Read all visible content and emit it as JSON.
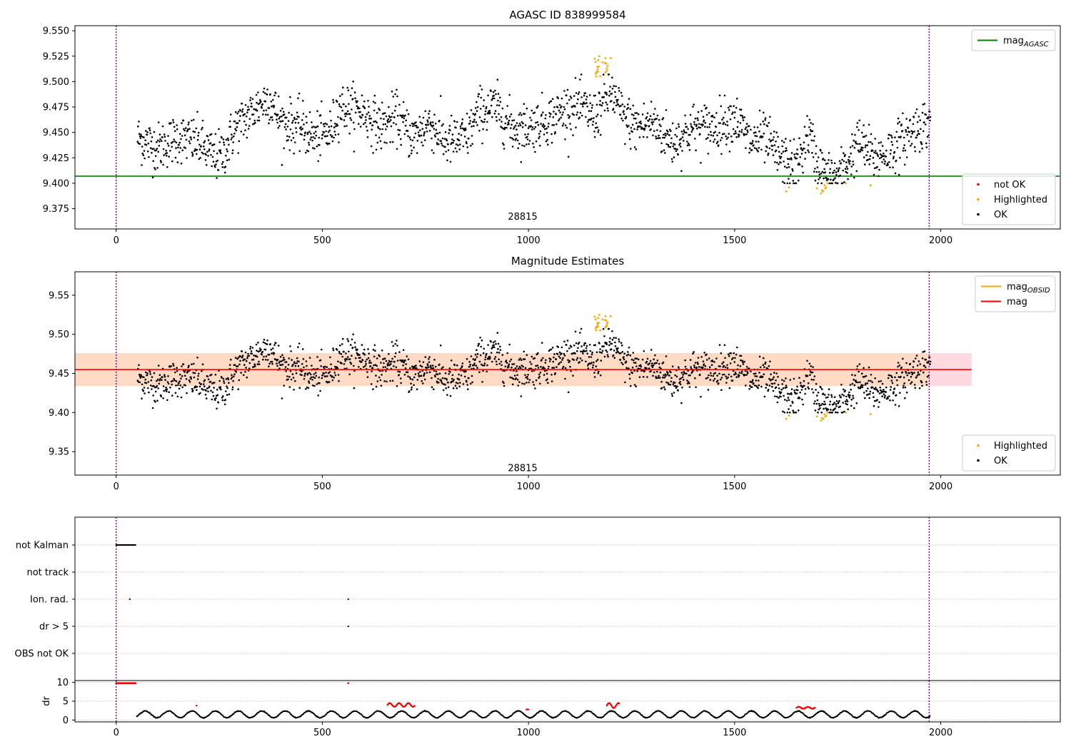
{
  "chart_data": [
    {
      "type": "scatter",
      "title": "AGASC ID 838999584",
      "xlabel": "",
      "ylabel": "",
      "xlim": [
        -100,
        2290
      ],
      "ylim": [
        9.355,
        9.555
      ],
      "x_ticks": [
        0,
        500,
        1000,
        1500,
        2000
      ],
      "x_tick_labels": [
        "0",
        "500",
        "1000",
        "1500",
        "2000"
      ],
      "y_ticks": [
        9.375,
        9.4,
        9.425,
        9.45,
        9.475,
        9.5,
        9.525,
        9.55
      ],
      "y_tick_labels": [
        "9.375",
        "9.400",
        "9.425",
        "9.450",
        "9.475",
        "9.500",
        "9.525",
        "9.550"
      ],
      "vlines": [
        0,
        1972
      ],
      "hline": {
        "name": "mag_AGASC",
        "value": 9.407,
        "color": "#008000",
        "x_range": [
          -100,
          2290
        ]
      },
      "obsid_label": {
        "text": "28815",
        "x": 986,
        "y": 9.364
      },
      "legend_top": [
        {
          "label": "mag",
          "sub": "AGASC",
          "color": "#008000",
          "kind": "line"
        }
      ],
      "legend_bottom": [
        {
          "label": "not OK",
          "color": "#ff0000",
          "kind": "dot"
        },
        {
          "label": "Highlighted",
          "color": "#ffa500",
          "kind": "dot"
        },
        {
          "label": "OK",
          "color": "#000000",
          "kind": "dot"
        }
      ],
      "series_desc": "OK samples ~1970 points, x 50-1975, mag 9.40-9.51; Highlighted samples near x 1160-1200 (9.51-9.525) and 1620-1830 (9.39-9.40)"
    },
    {
      "type": "scatter",
      "title": "Magnitude Estimates",
      "xlabel": "",
      "ylabel": "",
      "xlim": [
        -100,
        2290
      ],
      "ylim": [
        9.32,
        9.58
      ],
      "x_ticks": [
        0,
        500,
        1000,
        1500,
        2000
      ],
      "x_tick_labels": [
        "0",
        "500",
        "1000",
        "1500",
        "2000"
      ],
      "y_ticks": [
        9.35,
        9.4,
        9.45,
        9.5,
        9.55
      ],
      "y_tick_labels": [
        "9.35",
        "9.40",
        "9.45",
        "9.50",
        "9.55"
      ],
      "vlines": [
        0,
        1972
      ],
      "mag_line": {
        "name": "mag",
        "value": 9.455,
        "color": "#ff0000",
        "x_range": [
          -100,
          2075
        ]
      },
      "mag_band": {
        "low": 9.434,
        "high": 9.476,
        "x_range": [
          -100,
          2075
        ]
      },
      "obsid_band": {
        "low": 9.434,
        "high": 9.476,
        "x_range": [
          -100,
          1972
        ]
      },
      "obsid_label": {
        "text": "28815",
        "x": 986,
        "y": 9.325
      },
      "legend_top": [
        {
          "label": "mag",
          "sub": "OBSID",
          "color": "#ffa500",
          "kind": "line"
        },
        {
          "label": "mag",
          "sub": "",
          "color": "#ff0000",
          "kind": "line"
        }
      ],
      "legend_bottom": [
        {
          "label": "Highlighted",
          "color": "#ffa500",
          "kind": "dot"
        },
        {
          "label": "OK",
          "color": "#000000",
          "kind": "dot"
        }
      ]
    },
    {
      "type": "scatter",
      "title": "",
      "xlim": [
        -100,
        2290
      ],
      "flag_rows": [
        "not Kalman",
        "not track",
        "Ion. rad.",
        "dr > 5",
        "OBS not OK"
      ],
      "flag_points": {
        "not Kalman": [
          0,
          48
        ],
        "Ion. rad.": [
          33,
          563
        ],
        "dr > 5": [
          563
        ]
      },
      "vlines": [
        0,
        1972
      ]
    },
    {
      "type": "scatter",
      "title": "",
      "ylabel": "dr",
      "xlim": [
        -100,
        2290
      ],
      "ylim": [
        -0.5,
        10.5
      ],
      "y_ticks": [
        0,
        5,
        10
      ],
      "y_tick_labels": [
        "0",
        "5",
        "10"
      ],
      "x_ticks": [
        0,
        500,
        1000,
        1500,
        2000
      ],
      "x_tick_labels": [
        "0",
        "500",
        "1000",
        "1500",
        "2000"
      ],
      "vlines": [
        0,
        1972
      ],
      "red_at_10": [
        [
          0,
          48
        ],
        [
          563,
          563
        ]
      ],
      "red_clusters": [
        [
          658,
          724,
          3.5,
          4.5
        ],
        [
          1190,
          1220,
          3.2,
          4.5
        ],
        [
          1650,
          1695,
          3.0,
          3.5
        ],
        [
          195,
          195,
          3.8,
          3.8
        ],
        [
          995,
          1000,
          2.8,
          2.8
        ]
      ]
    }
  ],
  "colors": {
    "ok": "#000000",
    "highlighted": "#ffa500",
    "not_ok": "#ff0000",
    "agasc_line": "#008000",
    "mag_line": "#ff0000",
    "obsid_line": "#ffa500",
    "vline": "#800080",
    "band_mag": "#ffc0cb",
    "band_obsid": "#ffdab9"
  }
}
